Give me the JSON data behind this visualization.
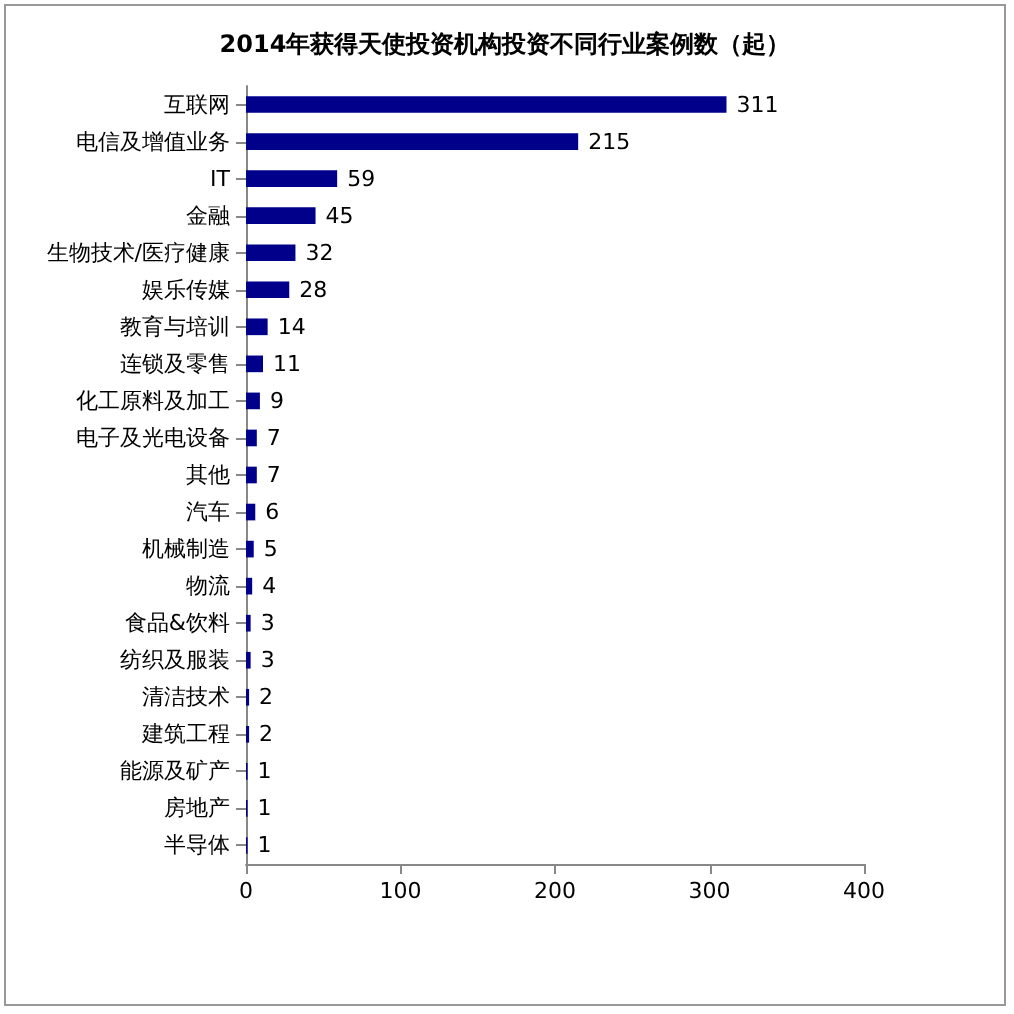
{
  "chart_data": {
    "type": "bar",
    "orientation": "horizontal",
    "title": "2014年获得天使投资机构投资不同行业案例数（起）",
    "categories": [
      "互联网",
      "电信及增值业务",
      "IT",
      "金融",
      "生物技术/医疗健康",
      "娱乐传媒",
      "教育与培训",
      "连锁及零售",
      "化工原料及加工",
      "电子及光电设备",
      "其他",
      "汽车",
      "机械制造",
      "物流",
      "食品&饮料",
      "纺织及服装",
      "清洁技术",
      "建筑工程",
      "能源及矿产",
      "房地产",
      "半导体"
    ],
    "values": [
      311,
      215,
      59,
      45,
      32,
      28,
      14,
      11,
      9,
      7,
      7,
      6,
      5,
      4,
      3,
      3,
      2,
      2,
      1,
      1,
      1
    ],
    "color": "#00008b",
    "xlim": [
      0,
      400
    ],
    "xticks": [
      0,
      100,
      200,
      300,
      400
    ],
    "data_labels": true
  }
}
